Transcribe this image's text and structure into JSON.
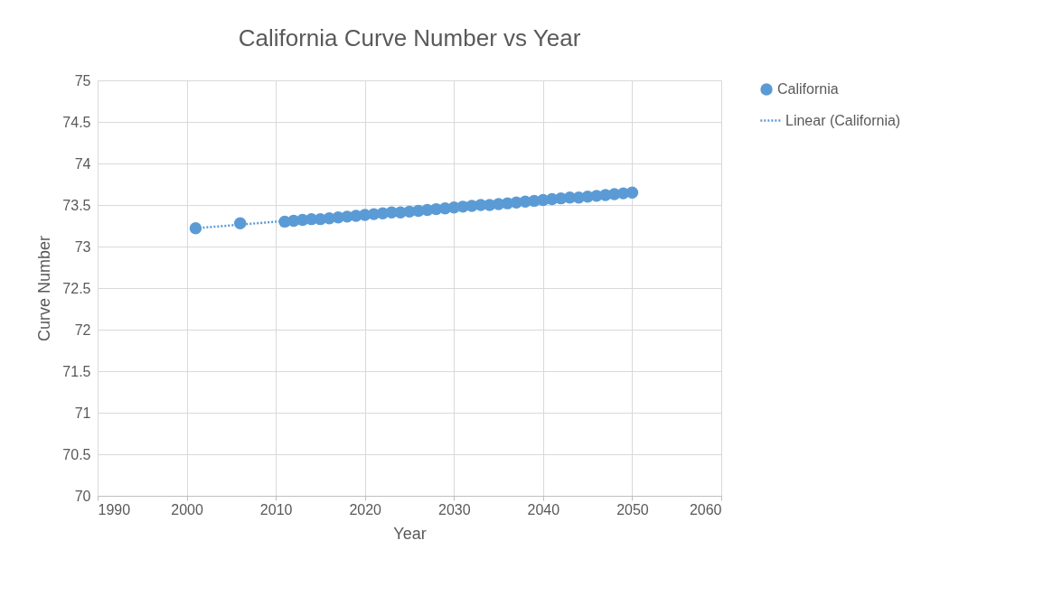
{
  "chart_data": {
    "type": "scatter",
    "title": "California Curve Number vs Year",
    "xlabel": "Year",
    "ylabel": "Curve Number",
    "xlim": [
      1990,
      2060
    ],
    "xticks": [
      1990,
      2000,
      2010,
      2020,
      2030,
      2040,
      2050,
      2060
    ],
    "ylim": [
      70,
      75
    ],
    "yticks": [
      70,
      70.5,
      71,
      71.5,
      72,
      72.5,
      73,
      73.5,
      74,
      74.5,
      75
    ],
    "grid": true,
    "legend": "right",
    "marker": "circle",
    "series": [
      {
        "name": "California",
        "color": "#5b9bd5",
        "x": [
          2001,
          2006,
          2011,
          2012,
          2013,
          2014,
          2015,
          2016,
          2017,
          2018,
          2019,
          2020,
          2021,
          2022,
          2023,
          2024,
          2025,
          2026,
          2027,
          2028,
          2029,
          2030,
          2031,
          2032,
          2033,
          2034,
          2035,
          2036,
          2037,
          2038,
          2039,
          2040,
          2041,
          2042,
          2043,
          2044,
          2045,
          2046,
          2047,
          2048,
          2049,
          2050
        ],
        "values": [
          73.22,
          73.28,
          73.3,
          73.31,
          73.32,
          73.33,
          73.33,
          73.34,
          73.35,
          73.36,
          73.37,
          73.38,
          73.39,
          73.4,
          73.41,
          73.41,
          73.42,
          73.43,
          73.44,
          73.45,
          73.46,
          73.47,
          73.48,
          73.49,
          73.5,
          73.5,
          73.51,
          73.52,
          73.53,
          73.54,
          73.55,
          73.56,
          73.57,
          73.58,
          73.59,
          73.59,
          73.6,
          73.61,
          73.62,
          73.63,
          73.64,
          73.65
        ]
      },
      {
        "name": "Linear (California)",
        "type": "line",
        "marker": "none",
        "line_style": "dotted",
        "color": "#5b9bd5",
        "x": [
          2001,
          2050
        ],
        "values": [
          73.22,
          73.65
        ]
      }
    ]
  }
}
